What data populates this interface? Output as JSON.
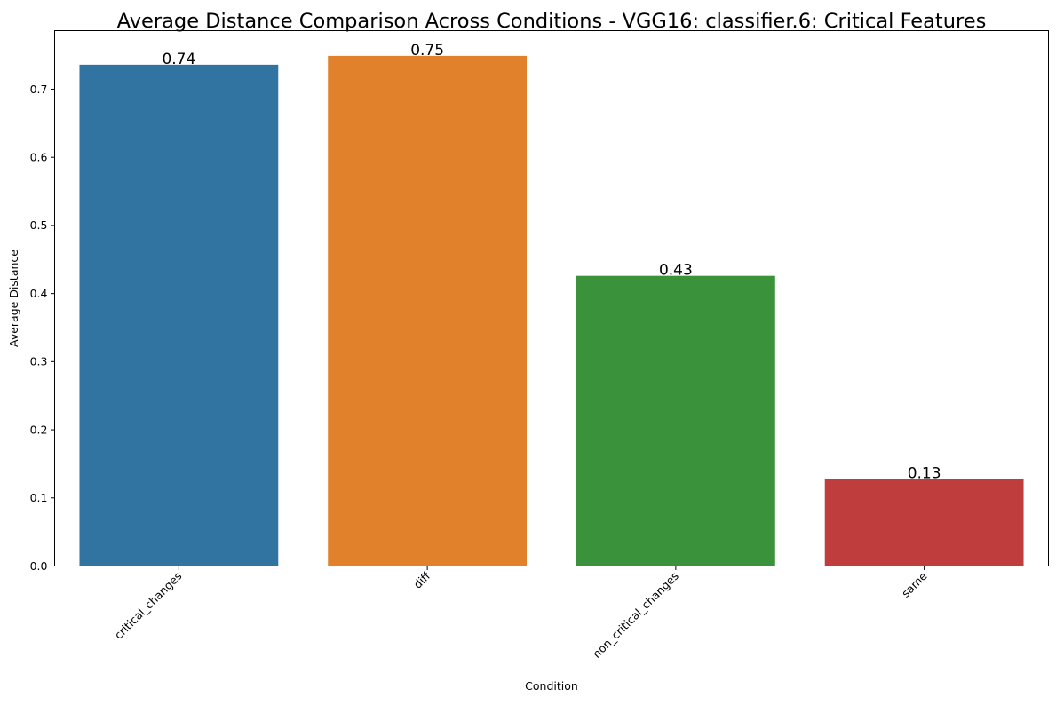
{
  "chart_data": {
    "type": "bar",
    "title": "Average Distance Comparison Across Conditions - VGG16: classifier.6: Critical Features",
    "xlabel": "Condition",
    "ylabel": "Average Distance",
    "categories": [
      "critical_changes",
      "diff",
      "non_critical_changes",
      "same"
    ],
    "values": [
      0.736,
      0.749,
      0.426,
      0.128
    ],
    "data_labels": [
      "0.74",
      "0.75",
      "0.43",
      "0.13"
    ],
    "colors": [
      "#3274a1",
      "#e1812c",
      "#3a923a",
      "#c03d3e"
    ],
    "ylim": [
      0,
      0.786
    ],
    "yticks": [
      0.0,
      0.1,
      0.2,
      0.3,
      0.4,
      0.5,
      0.6,
      0.7
    ],
    "ytick_labels": [
      "0.0",
      "0.1",
      "0.2",
      "0.3",
      "0.4",
      "0.5",
      "0.6",
      "0.7"
    ],
    "grid": false,
    "legend": "none"
  }
}
